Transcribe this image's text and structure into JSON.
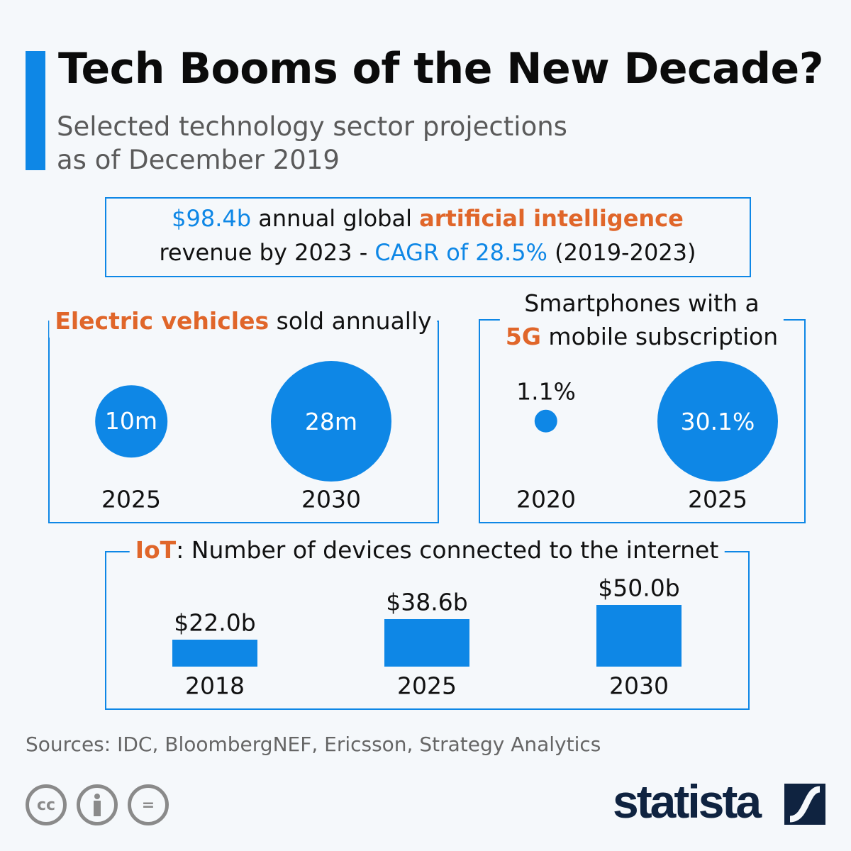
{
  "header": {
    "title": "Tech Booms of the New Decade?",
    "subtitle_line1": "Selected technology sector projections",
    "subtitle_line2": "as of December 2019"
  },
  "ai": {
    "value": "$98.4b",
    "t1": " annual global ",
    "highlight": "artificial intelligence",
    "t2": "revenue by 2023 - ",
    "cagr": "CAGR of 28.5%",
    "t3": " (2019-2023)"
  },
  "chart_data": [
    {
      "type": "bubble",
      "title_highlight": "Electric vehicles",
      "title_rest": " sold annually",
      "categories": [
        "2025",
        "2030"
      ],
      "values": [
        10,
        28
      ],
      "labels": [
        "10m",
        "28m"
      ],
      "unit": "m"
    },
    {
      "type": "bubble",
      "title_line1": "Smartphones with a",
      "title_highlight": "5G",
      "title_rest": " mobile subscription",
      "categories": [
        "2020",
        "2025"
      ],
      "values": [
        1.1,
        30.1
      ],
      "labels": [
        "1.1%",
        "30.1%"
      ],
      "unit": "%"
    },
    {
      "type": "bar",
      "title_highlight": "IoT",
      "title_rest": ": Number of devices connected to the internet",
      "categories": [
        "2018",
        "2025",
        "2030"
      ],
      "values": [
        22.0,
        38.6,
        50.0
      ],
      "labels": [
        "$22.0b",
        "$38.6b",
        "$50.0b"
      ]
    }
  ],
  "footer": {
    "sources": "Sources: IDC, BloombergNEF, Ericsson, Strategy Analytics",
    "brand": "statista",
    "cc_icons": [
      "cc-icon",
      "attribution-icon",
      "no-derivatives-icon"
    ]
  },
  "colors": {
    "accent": "#0e87e6",
    "highlight": "#e0662a",
    "brand": "#0f2340"
  }
}
